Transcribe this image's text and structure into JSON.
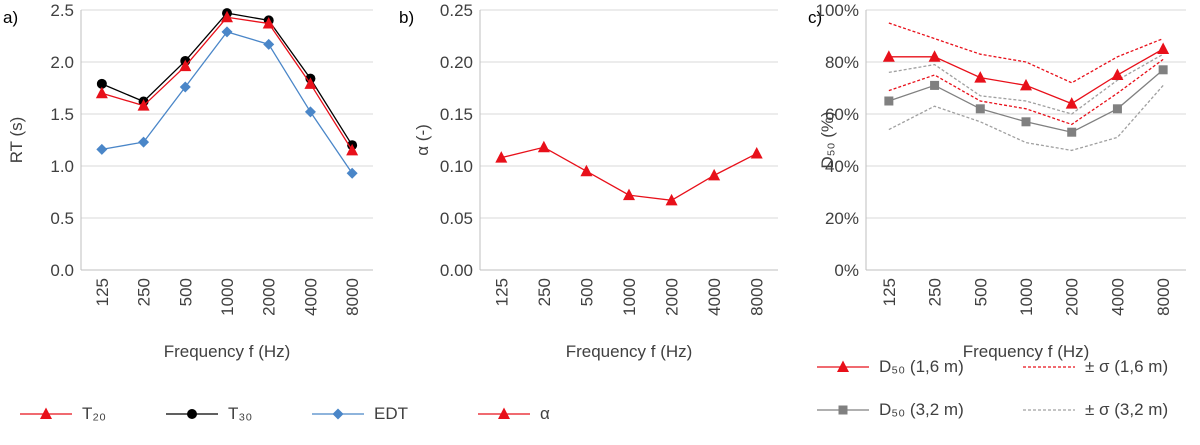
{
  "panel_labels": [
    "a)",
    "b)",
    "c)"
  ],
  "legend_ab": [
    {
      "label": "T₂₀",
      "color": "#e8101a",
      "marker": "triangle"
    },
    {
      "label": "T₃₀",
      "color": "#000000",
      "marker": "circle"
    },
    {
      "label": "EDT",
      "color": "#4a86c8",
      "marker": "diamond"
    },
    {
      "label": "α",
      "color": "#e8101a",
      "marker": "triangle"
    }
  ],
  "legend_c": [
    {
      "label": "D₅₀ (1,6 m)",
      "color": "#e8101a",
      "marker": "triangle",
      "dash": false
    },
    {
      "label": "± σ (1,6 m)",
      "color": "#e8101a",
      "marker": "none",
      "dash": true
    },
    {
      "label": "D₅₀ (3,2 m)",
      "color": "#808080",
      "marker": "square",
      "dash": false
    },
    {
      "label": "± σ (3,2 m)",
      "color": "#a0a0a0",
      "marker": "none",
      "dash": true
    }
  ],
  "chart_data": [
    {
      "type": "line",
      "categories": [
        "125",
        "250",
        "500",
        "1000",
        "2000",
        "4000",
        "8000"
      ],
      "xlabel": "Frequency f (Hz)",
      "ylabel": "RT (s)",
      "ylim": [
        0,
        2.5
      ],
      "yticks": [
        "0.0",
        "0.5",
        "1.0",
        "1.5",
        "2.0",
        "2.5"
      ],
      "grid": true,
      "series": [
        {
          "name": "T₃₀",
          "color": "#000000",
          "marker": "circle",
          "values": [
            1.79,
            1.62,
            2.01,
            2.47,
            2.4,
            1.84,
            1.2
          ]
        },
        {
          "name": "T₂₀",
          "color": "#e8101a",
          "marker": "triangle",
          "values": [
            1.7,
            1.58,
            1.96,
            2.43,
            2.37,
            1.79,
            1.15
          ]
        },
        {
          "name": "EDT",
          "color": "#4a86c8",
          "marker": "diamond",
          "values": [
            1.16,
            1.23,
            1.76,
            2.29,
            2.17,
            1.52,
            0.93
          ]
        }
      ]
    },
    {
      "type": "line",
      "categories": [
        "125",
        "250",
        "500",
        "1000",
        "2000",
        "4000",
        "8000"
      ],
      "xlabel": "Frequency f (Hz)",
      "ylabel": "α (-)",
      "ylim": [
        0,
        0.25
      ],
      "yticks": [
        "0.00",
        "0.05",
        "0.10",
        "0.15",
        "0.20",
        "0.25"
      ],
      "grid": true,
      "series": [
        {
          "name": "α",
          "color": "#e8101a",
          "marker": "triangle",
          "values": [
            0.108,
            0.118,
            0.095,
            0.072,
            0.067,
            0.091,
            0.112
          ]
        }
      ]
    },
    {
      "type": "line",
      "categories": [
        "125",
        "250",
        "500",
        "1000",
        "2000",
        "4000",
        "8000"
      ],
      "xlabel": "Frequency f (Hz)",
      "ylabel": "D₅₀ (%)",
      "ylim": [
        0,
        100
      ],
      "yticks": [
        "0%",
        "20%",
        "40%",
        "60%",
        "80%",
        "100%"
      ],
      "grid": true,
      "series": [
        {
          "name": "+σ (1,6 m)",
          "color": "#e8101a",
          "marker": "none",
          "dash": true,
          "values": [
            95,
            89,
            83,
            80,
            72,
            82,
            89
          ]
        },
        {
          "name": "−σ (1,6 m)",
          "color": "#e8101a",
          "marker": "none",
          "dash": true,
          "values": [
            69,
            75,
            65,
            62,
            56,
            68,
            81
          ]
        },
        {
          "name": "+σ (3,2 m)",
          "color": "#a0a0a0",
          "marker": "none",
          "dash": true,
          "values": [
            76,
            79,
            67,
            65,
            60,
            73,
            83
          ]
        },
        {
          "name": "−σ (3,2 m)",
          "color": "#a0a0a0",
          "marker": "none",
          "dash": true,
          "values": [
            54,
            63,
            57,
            49,
            46,
            51,
            71
          ]
        },
        {
          "name": "D₅₀ (3,2 m)",
          "color": "#808080",
          "marker": "square",
          "dash": false,
          "values": [
            65,
            71,
            62,
            57,
            53,
            62,
            77
          ]
        },
        {
          "name": "D₅₀ (1,6 m)",
          "color": "#e8101a",
          "marker": "triangle",
          "dash": false,
          "values": [
            82,
            82,
            74,
            71,
            64,
            75,
            85
          ]
        }
      ]
    }
  ]
}
